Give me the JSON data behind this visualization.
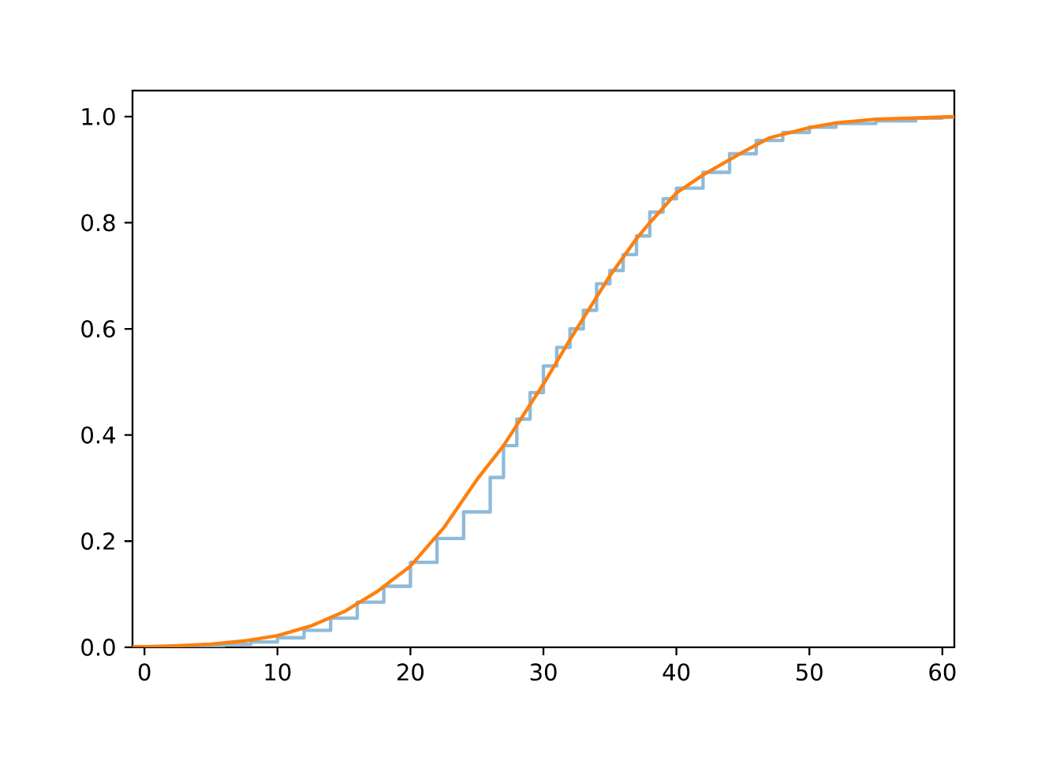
{
  "chart_data": {
    "type": "line",
    "xlim": [
      -0.9,
      60.9
    ],
    "ylim": [
      0,
      1.049
    ],
    "xticks": [
      0,
      10,
      20,
      30,
      40,
      50,
      60
    ],
    "yticks": [
      {
        "value": 0,
        "label": "0.0"
      },
      {
        "value": 0.2,
        "label": "0.2"
      },
      {
        "value": 0.4,
        "label": "0.4"
      },
      {
        "value": 0.6,
        "label": "0.6"
      },
      {
        "value": 0.8,
        "label": "0.8"
      },
      {
        "value": 1,
        "label": "1.0"
      }
    ],
    "grid": false,
    "series": [
      {
        "type": "step",
        "color": "#8fbbd9",
        "x": [
          0,
          4,
          6,
          8,
          10,
          12,
          14,
          16,
          18,
          20,
          22,
          24,
          26,
          27,
          28,
          29,
          30,
          31,
          32,
          33,
          34,
          35,
          36,
          37,
          38,
          39,
          40,
          42,
          44,
          46,
          48,
          50,
          52,
          55,
          58,
          60,
          60.9
        ],
        "values": [
          0,
          0.003,
          0.006,
          0.01,
          0.018,
          0.032,
          0.055,
          0.085,
          0.115,
          0.16,
          0.205,
          0.255,
          0.32,
          0.38,
          0.43,
          0.48,
          0.53,
          0.565,
          0.6,
          0.635,
          0.685,
          0.71,
          0.74,
          0.775,
          0.82,
          0.845,
          0.865,
          0.895,
          0.93,
          0.955,
          0.97,
          0.98,
          0.987,
          0.992,
          0.997,
          0.999,
          1
        ]
      },
      {
        "color": "#ff7f0e",
        "x": [
          -0.9,
          0,
          2.5,
          5,
          7.5,
          10,
          12.5,
          15,
          17.5,
          20,
          22.5,
          25,
          27,
          30,
          32,
          33,
          35,
          37,
          38,
          40,
          42,
          45,
          47,
          50,
          52,
          55,
          60,
          60.9
        ],
        "values": [
          0.001,
          0.001,
          0.003,
          0.006,
          0.012,
          0.022,
          0.04,
          0.067,
          0.105,
          0.153,
          0.225,
          0.316,
          0.38,
          0.496,
          0.58,
          0.62,
          0.7,
          0.77,
          0.8,
          0.856,
          0.89,
          0.933,
          0.96,
          0.979,
          0.988,
          0.995,
          0.999,
          1
        ]
      }
    ]
  }
}
